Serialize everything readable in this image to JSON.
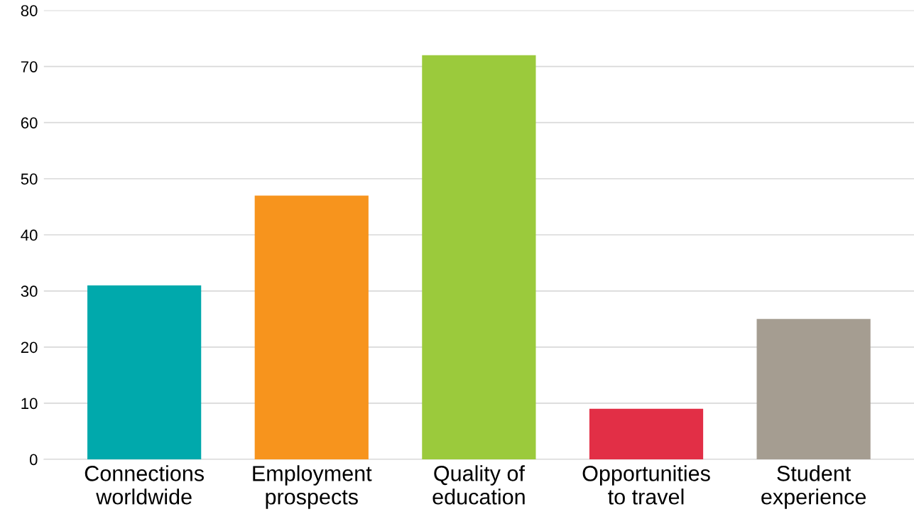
{
  "chart_data": {
    "type": "bar",
    "categories": [
      "Connections\nworldwide",
      "Employment\nprospects",
      "Quality of\neducation",
      "Opportunities\nto travel",
      "Student\nexperience"
    ],
    "values": [
      31,
      47,
      72,
      9,
      25
    ],
    "colors": [
      "#00a9ac",
      "#f7941d",
      "#9bca3c",
      "#e22f46",
      "#a59d91"
    ],
    "ylim": [
      0,
      80
    ],
    "yticks": [
      0,
      10,
      20,
      30,
      40,
      50,
      60,
      70,
      80
    ],
    "grid": "y"
  }
}
